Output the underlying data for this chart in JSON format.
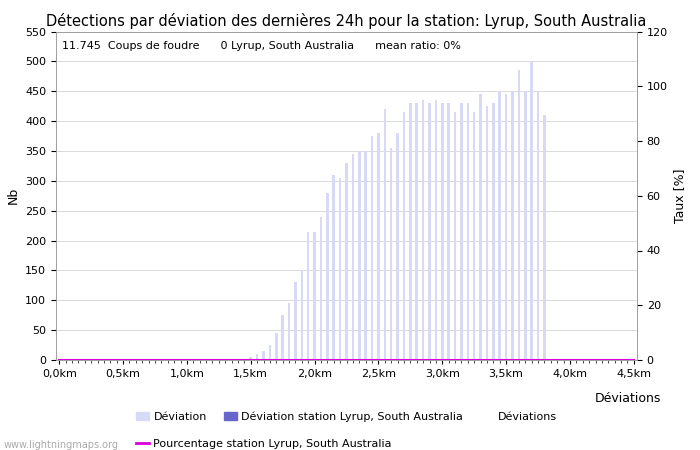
{
  "title": "Détections par déviation des dernières 24h pour la station: Lyrup, South Australia",
  "subtitle": "11.745  Coups de foudre      0 Lyrup, South Australia      mean ratio: 0%",
  "ylabel_left": "Nb",
  "ylabel_right": "Taux [%]",
  "xlabel_right": "Déviations",
  "ylim_left": [
    0,
    550
  ],
  "ylim_right": [
    0,
    120
  ],
  "yticks_left": [
    0,
    50,
    100,
    150,
    200,
    250,
    300,
    350,
    400,
    450,
    500,
    550
  ],
  "yticks_right": [
    0,
    20,
    40,
    60,
    80,
    100,
    120
  ],
  "bar_width": 0.4,
  "bar_color_light": "#d8daf5",
  "bar_color_dark": "#6666cc",
  "line_color": "#dd00dd",
  "background_color": "#ffffff",
  "grid_color": "#cccccc",
  "watermark": "www.lightningmaps.org",
  "n_bars": 91,
  "km_per_bar": 0.05,
  "xtick_every": 10,
  "xtick_start_label": "0,0km",
  "bar_values": [
    0,
    0,
    0,
    0,
    0,
    0,
    0,
    0,
    0,
    0,
    0,
    0,
    0,
    0,
    0,
    0,
    0,
    0,
    0,
    0,
    0,
    0,
    0,
    0,
    0,
    0,
    0,
    0,
    0,
    0,
    5,
    10,
    15,
    25,
    45,
    75,
    95,
    130,
    150,
    215,
    215,
    240,
    280,
    310,
    305,
    330,
    345,
    350,
    350,
    375,
    380,
    420,
    355,
    380,
    415,
    430,
    430,
    435,
    430,
    435,
    430,
    430,
    415,
    430,
    430,
    415,
    445,
    425,
    430,
    450,
    445,
    450,
    485,
    450,
    500,
    450,
    410,
    0,
    0,
    0,
    0,
    0,
    0,
    0,
    0,
    0,
    0,
    0,
    0,
    0,
    0
  ],
  "station_bar_values": [
    0,
    0,
    0,
    0,
    0,
    0,
    0,
    0,
    0,
    0,
    0,
    0,
    0,
    0,
    0,
    0,
    0,
    0,
    0,
    0,
    0,
    0,
    0,
    0,
    0,
    0,
    0,
    0,
    0,
    0,
    0,
    0,
    0,
    0,
    0,
    0,
    0,
    0,
    0,
    0,
    0,
    0,
    0,
    0,
    0,
    0,
    0,
    0,
    0,
    0,
    0,
    0,
    0,
    0,
    0,
    0,
    0,
    0,
    0,
    0,
    0,
    0,
    0,
    0,
    0,
    0,
    0,
    0,
    0,
    0,
    0,
    0,
    0,
    0,
    0,
    0,
    0,
    0,
    0,
    0,
    0,
    0,
    0,
    0,
    0,
    0,
    0,
    0,
    0,
    0,
    0
  ],
  "percentage_values": [
    0,
    0,
    0,
    0,
    0,
    0,
    0,
    0,
    0,
    0,
    0,
    0,
    0,
    0,
    0,
    0,
    0,
    0,
    0,
    0,
    0,
    0,
    0,
    0,
    0,
    0,
    0,
    0,
    0,
    0,
    0,
    0,
    0,
    0,
    0,
    0,
    0,
    0,
    0,
    0,
    0,
    0,
    0,
    0,
    0,
    0,
    0,
    0,
    0,
    0,
    0,
    0,
    0,
    0,
    0,
    0,
    0,
    0,
    0,
    0,
    0,
    0,
    0,
    0,
    0,
    0,
    0,
    0,
    0,
    0,
    0,
    0,
    0,
    0,
    0,
    0,
    0,
    0,
    0,
    0,
    0,
    0,
    0,
    0,
    0,
    0,
    0,
    0,
    0,
    0,
    0
  ],
  "xtick_labels": [
    "0,0km",
    "",
    "",
    "",
    "",
    "",
    "",
    "",
    "",
    "",
    "0,5km",
    "",
    "",
    "",
    "",
    "",
    "",
    "",
    "",
    "",
    "1,0km",
    "",
    "",
    "",
    "",
    "",
    "",
    "",
    "",
    "",
    "1,5km",
    "",
    "",
    "",
    "",
    "",
    "",
    "",
    "",
    "",
    "2,0km",
    "",
    "",
    "",
    "",
    "",
    "",
    "",
    "",
    "",
    "2,5km",
    "",
    "",
    "",
    "",
    "",
    "",
    "",
    "",
    "",
    "3,0km",
    "",
    "",
    "",
    "",
    "",
    "",
    "",
    "",
    "",
    "3,5km",
    "",
    "",
    "",
    "",
    "",
    "",
    "",
    "",
    "",
    "4,0km",
    "",
    "",
    "",
    "",
    "",
    "",
    "",
    "",
    "",
    "4,5km"
  ],
  "legend_items": [
    {
      "label": "Déviation",
      "color": "#d8daf5",
      "type": "bar"
    },
    {
      "label": "Déviation station Lyrup, South Australia",
      "color": "#6666cc",
      "type": "bar"
    },
    {
      "label": "Déviations",
      "color": "#000000",
      "type": "text"
    },
    {
      "label": "Pourcentage station Lyrup, South Australia",
      "color": "#dd00dd",
      "type": "line"
    }
  ],
  "title_fontsize": 10.5,
  "axis_fontsize": 9,
  "tick_fontsize": 8,
  "subtitle_fontsize": 8
}
